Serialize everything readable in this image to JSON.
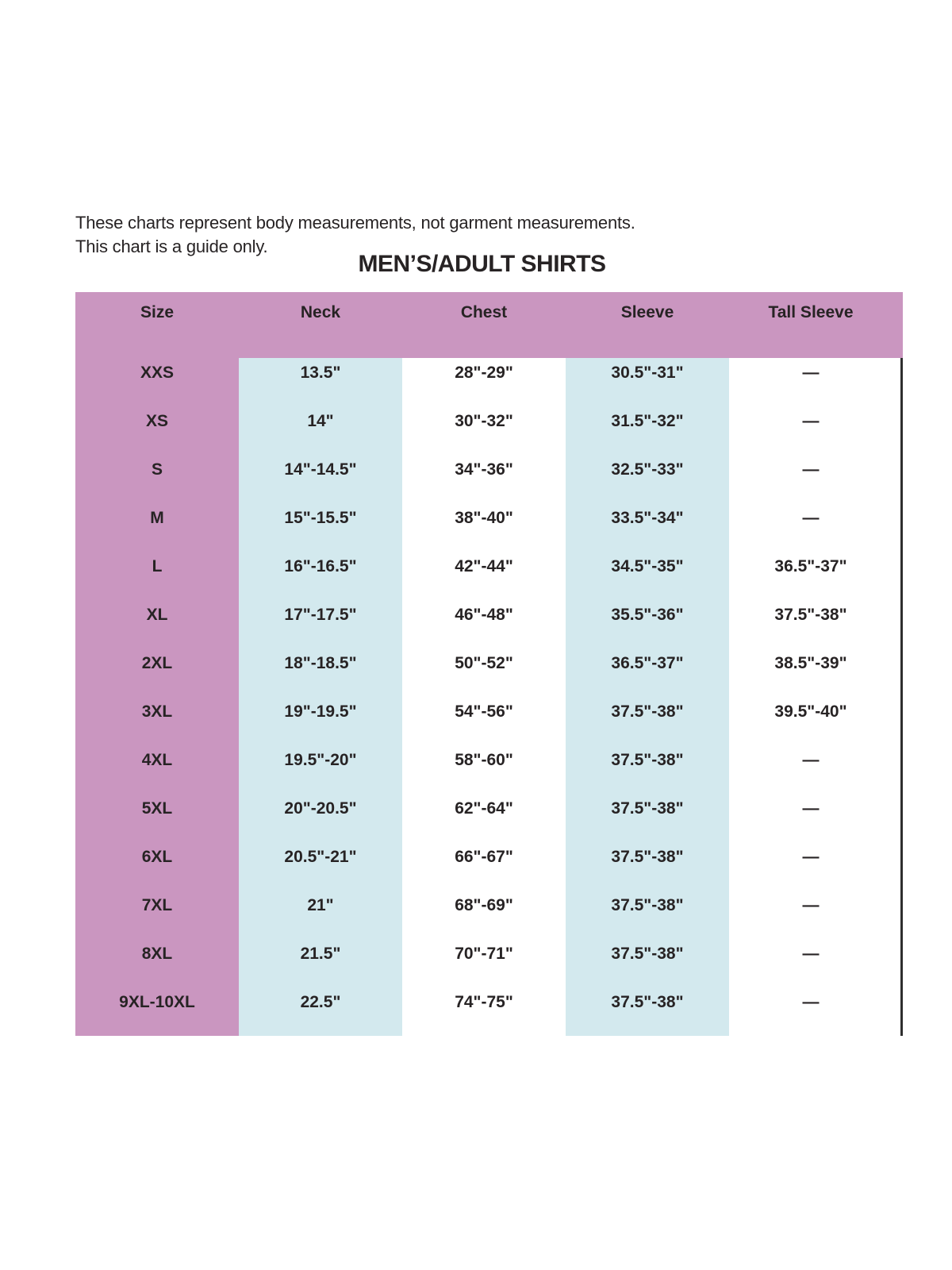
{
  "page": {
    "intro_line1": "These charts represent body measurements, not garment measurements.",
    "intro_line2": "This chart is a guide only.",
    "title": "MEN’S/ADULT SHIRTS"
  },
  "colors": {
    "header_pink": "#ca96c0",
    "column_blue": "#d3e9ee",
    "text": "#272324",
    "border": "#2e2e2e",
    "background": "#ffffff"
  },
  "table": {
    "columns": [
      "Size",
      "Neck",
      "Chest",
      "Sleeve",
      "Tall Sleeve"
    ],
    "rows": [
      {
        "size": "XXS",
        "neck": "13.5\"",
        "chest": "28\"-29\"",
        "sleeve": "30.5\"-31\"",
        "tall_sleeve": "—"
      },
      {
        "size": "XS",
        "neck": "14\"",
        "chest": "30\"-32\"",
        "sleeve": "31.5\"-32\"",
        "tall_sleeve": "—"
      },
      {
        "size": "S",
        "neck": "14\"-14.5\"",
        "chest": "34\"-36\"",
        "sleeve": "32.5\"-33\"",
        "tall_sleeve": "—"
      },
      {
        "size": "M",
        "neck": "15\"-15.5\"",
        "chest": "38\"-40\"",
        "sleeve": "33.5\"-34\"",
        "tall_sleeve": "—"
      },
      {
        "size": "L",
        "neck": "16\"-16.5\"",
        "chest": "42\"-44\"",
        "sleeve": "34.5\"-35\"",
        "tall_sleeve": "36.5\"-37\""
      },
      {
        "size": "XL",
        "neck": "17\"-17.5\"",
        "chest": "46\"-48\"",
        "sleeve": "35.5\"-36\"",
        "tall_sleeve": "37.5\"-38\""
      },
      {
        "size": "2XL",
        "neck": "18\"-18.5\"",
        "chest": "50\"-52\"",
        "sleeve": "36.5\"-37\"",
        "tall_sleeve": "38.5\"-39\""
      },
      {
        "size": "3XL",
        "neck": "19\"-19.5\"",
        "chest": "54\"-56\"",
        "sleeve": "37.5\"-38\"",
        "tall_sleeve": "39.5\"-40\""
      },
      {
        "size": "4XL",
        "neck": "19.5\"-20\"",
        "chest": "58\"-60\"",
        "sleeve": "37.5\"-38\"",
        "tall_sleeve": "—"
      },
      {
        "size": "5XL",
        "neck": "20\"-20.5\"",
        "chest": "62\"-64\"",
        "sleeve": "37.5\"-38\"",
        "tall_sleeve": "—"
      },
      {
        "size": "6XL",
        "neck": "20.5\"-21\"",
        "chest": "66\"-67\"",
        "sleeve": "37.5\"-38\"",
        "tall_sleeve": "—"
      },
      {
        "size": "7XL",
        "neck": "21\"",
        "chest": "68\"-69\"",
        "sleeve": "37.5\"-38\"",
        "tall_sleeve": "—"
      },
      {
        "size": "8XL",
        "neck": "21.5\"",
        "chest": "70\"-71\"",
        "sleeve": "37.5\"-38\"",
        "tall_sleeve": "—"
      },
      {
        "size": "9XL-10XL",
        "neck": "22.5\"",
        "chest": "74\"-75\"",
        "sleeve": "37.5\"-38\"",
        "tall_sleeve": "—"
      }
    ]
  },
  "chart_data": {
    "type": "table",
    "title": "MEN’S/ADULT SHIRTS",
    "note": "These charts represent body measurements, not garment measurements. This chart is a guide only.",
    "columns": [
      "Size",
      "Neck",
      "Chest",
      "Sleeve",
      "Tall Sleeve"
    ],
    "rows": [
      [
        "XXS",
        "13.5\"",
        "28\"-29\"",
        "30.5\"-31\"",
        "—"
      ],
      [
        "XS",
        "14\"",
        "30\"-32\"",
        "31.5\"-32\"",
        "—"
      ],
      [
        "S",
        "14\"-14.5\"",
        "34\"-36\"",
        "32.5\"-33\"",
        "—"
      ],
      [
        "M",
        "15\"-15.5\"",
        "38\"-40\"",
        "33.5\"-34\"",
        "—"
      ],
      [
        "L",
        "16\"-16.5\"",
        "42\"-44\"",
        "34.5\"-35\"",
        "36.5\"-37\""
      ],
      [
        "XL",
        "17\"-17.5\"",
        "46\"-48\"",
        "35.5\"-36\"",
        "37.5\"-38\""
      ],
      [
        "2XL",
        "18\"-18.5\"",
        "50\"-52\"",
        "36.5\"-37\"",
        "38.5\"-39\""
      ],
      [
        "3XL",
        "19\"-19.5\"",
        "54\"-56\"",
        "37.5\"-38\"",
        "39.5\"-40\""
      ],
      [
        "4XL",
        "19.5\"-20\"",
        "58\"-60\"",
        "37.5\"-38\"",
        "—"
      ],
      [
        "5XL",
        "20\"-20.5\"",
        "62\"-64\"",
        "37.5\"-38\"",
        "—"
      ],
      [
        "6XL",
        "20.5\"-21\"",
        "66\"-67\"",
        "37.5\"-38\"",
        "—"
      ],
      [
        "7XL",
        "21\"",
        "68\"-69\"",
        "37.5\"-38\"",
        "—"
      ],
      [
        "8XL",
        "21.5\"",
        "70\"-71\"",
        "37.5\"-38\"",
        "—"
      ],
      [
        "9XL-10XL",
        "22.5\"",
        "74\"-75\"",
        "37.5\"-38\"",
        "—"
      ]
    ]
  }
}
